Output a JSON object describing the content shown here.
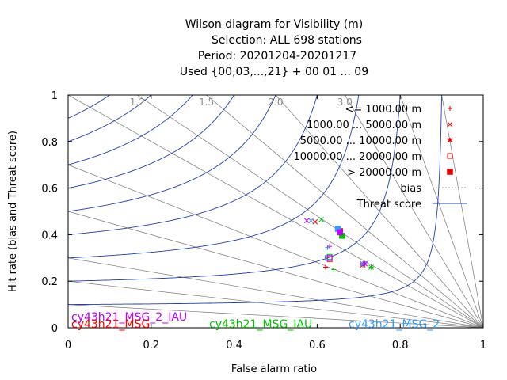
{
  "chart_data": {
    "type": "scatter",
    "title_lines": [
      "Wilson diagram  for Visibility (m)",
      "Selection: ALL    698 stations",
      "Period: 20201204-20201217",
      "Used {00,03,...,21} + 00 01 ... 09"
    ],
    "xlabel": "False alarm ratio",
    "ylabel": "Hit rate (bias and Threat score)",
    "xlim": [
      0,
      1
    ],
    "ylim": [
      0,
      1
    ],
    "xticks": [
      "0",
      "0.2",
      "0.4",
      "0.6",
      "0.8",
      "1"
    ],
    "yticks": [
      "0",
      "0.2",
      "0.4",
      "0.6",
      "0.8",
      "1"
    ],
    "bias_values": [
      0.1,
      0.2,
      0.3,
      0.5,
      0.7,
      1.0,
      1.2,
      1.5,
      2.0,
      3.0,
      5.0,
      10.0
    ],
    "bias_labels": [
      {
        "bias": 1.2,
        "text": "1.2"
      },
      {
        "bias": 1.5,
        "text": "1.5"
      },
      {
        "bias": 2.0,
        "text": "2.0"
      },
      {
        "bias": 3.0,
        "text": "3.0"
      }
    ],
    "threat_scores": [
      0.1,
      0.2,
      0.3,
      0.4,
      0.5,
      0.6,
      0.7,
      0.8,
      0.9
    ],
    "legend": {
      "position": "top-right",
      "classes": [
        {
          "label": "<= 1000.00 m",
          "marker": "plus"
        },
        {
          "label": "1000.00 ... 5000.00 m",
          "marker": "cross"
        },
        {
          "label": "5000.00 ... 10000.00 m",
          "marker": "star"
        },
        {
          "label": "10000.00 ... 20000.00 m",
          "marker": "square-open"
        },
        {
          "label": "> 20000.00 m",
          "marker": "square-filled"
        }
      ],
      "bias_label": "bias",
      "threat_label": "Threat score"
    },
    "series": [
      {
        "name": "cy43h21_MSG",
        "color": "#ff0000",
        "points": [
          {
            "marker": "plus",
            "x": 0.62,
            "y": 0.26
          },
          {
            "marker": "cross",
            "x": 0.595,
            "y": 0.455
          },
          {
            "marker": "star",
            "x": 0.71,
            "y": 0.27
          },
          {
            "marker": "square-open",
            "x": 0.63,
            "y": 0.295
          },
          {
            "marker": "square-filled",
            "x": 0.655,
            "y": 0.415
          }
        ]
      },
      {
        "name": "cy43h21_MSG_IAU",
        "color": "#00c000",
        "points": [
          {
            "marker": "plus",
            "x": 0.64,
            "y": 0.25
          },
          {
            "marker": "cross",
            "x": 0.61,
            "y": 0.465
          },
          {
            "marker": "star",
            "x": 0.73,
            "y": 0.26
          },
          {
            "marker": "square-open",
            "x": 0.63,
            "y": 0.305
          },
          {
            "marker": "square-filled",
            "x": 0.66,
            "y": 0.395
          }
        ]
      },
      {
        "name": "cy43h21_MSG_2",
        "color": "#3399ff",
        "points": [
          {
            "marker": "plus",
            "x": 0.625,
            "y": 0.345
          },
          {
            "marker": "cross",
            "x": 0.585,
            "y": 0.46
          },
          {
            "marker": "star",
            "x": 0.71,
            "y": 0.275
          },
          {
            "marker": "square-open",
            "x": 0.625,
            "y": 0.3
          },
          {
            "marker": "square-filled",
            "x": 0.65,
            "y": 0.425
          }
        ]
      },
      {
        "name": "cy43h21_MSG_2_IAU",
        "color": "#c000ff",
        "points": [
          {
            "marker": "plus",
            "x": 0.63,
            "y": 0.35
          },
          {
            "marker": "cross",
            "x": 0.575,
            "y": 0.46
          },
          {
            "marker": "star",
            "x": 0.715,
            "y": 0.275
          },
          {
            "marker": "square-open",
            "x": 0.63,
            "y": 0.3
          },
          {
            "marker": "square-filled",
            "x": 0.655,
            "y": 0.41
          }
        ]
      }
    ],
    "experiments": [
      {
        "name": "cy43h21_MSG_2_IAU",
        "color": "#c000ff"
      },
      {
        "name": "cy43h21_MSG",
        "color": "#ff0000"
      },
      {
        "name": "cy43h21_MSG_IAU",
        "color": "#00c000"
      },
      {
        "name": "cy43h21_MSG_2",
        "color": "#3399ff"
      }
    ]
  }
}
